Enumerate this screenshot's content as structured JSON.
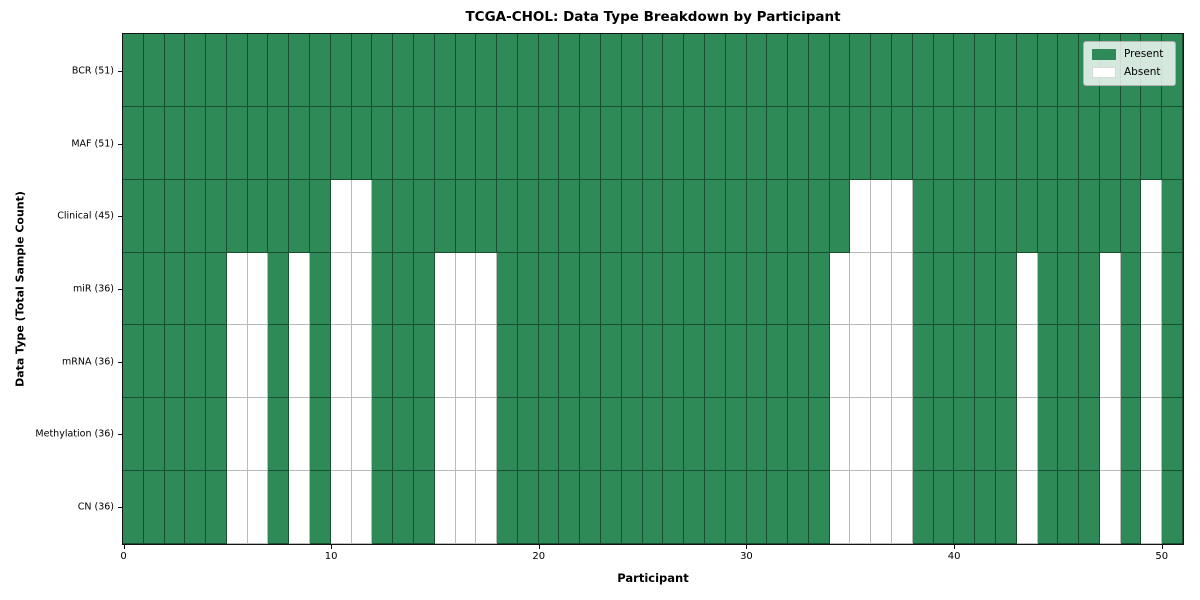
{
  "title": "TCGA-CHOL: Data Type Breakdown by Participant",
  "xlabel": "Participant",
  "ylabel": "Data Type (Total Sample Count)",
  "legend": {
    "present_label": "Present",
    "absent_label": "Absent"
  },
  "colors": {
    "present": "#2E8B57",
    "absent": "#FFFFFF"
  },
  "chart_data": {
    "type": "heatmap",
    "title": "TCGA-CHOL: Data Type Breakdown by Participant",
    "xlabel": "Participant",
    "ylabel": "Data Type (Total Sample Count)",
    "x_range": [
      0,
      51
    ],
    "x_ticks": [
      0,
      10,
      20,
      30,
      40,
      50
    ],
    "n_participants": 51,
    "grid": true,
    "legend_entries": [
      "Present",
      "Absent"
    ],
    "legend_position": "upper right",
    "value_encoding": {
      "present": 1,
      "absent": 0
    },
    "rows": [
      {
        "label": "BCR (51)",
        "total_present": 51,
        "absent_participants": []
      },
      {
        "label": "MAF (51)",
        "total_present": 51,
        "absent_participants": []
      },
      {
        "label": "Clinical (45)",
        "total_present": 45,
        "absent_participants": [
          10,
          11,
          35,
          36,
          37,
          49
        ]
      },
      {
        "label": "miR (36)",
        "total_present": 36,
        "absent_participants": [
          5,
          6,
          8,
          10,
          11,
          15,
          16,
          17,
          34,
          35,
          36,
          37,
          43,
          47,
          49
        ]
      },
      {
        "label": "mRNA (36)",
        "total_present": 36,
        "absent_participants": [
          5,
          6,
          8,
          10,
          11,
          15,
          16,
          17,
          34,
          35,
          36,
          37,
          43,
          47,
          49
        ]
      },
      {
        "label": "Methylation (36)",
        "total_present": 36,
        "absent_participants": [
          5,
          6,
          8,
          10,
          11,
          15,
          16,
          17,
          34,
          35,
          36,
          37,
          43,
          47,
          49
        ]
      },
      {
        "label": "CN (36)",
        "total_present": 36,
        "absent_participants": [
          5,
          6,
          8,
          10,
          11,
          15,
          16,
          17,
          34,
          35,
          36,
          37,
          43,
          47,
          49
        ]
      }
    ]
  }
}
